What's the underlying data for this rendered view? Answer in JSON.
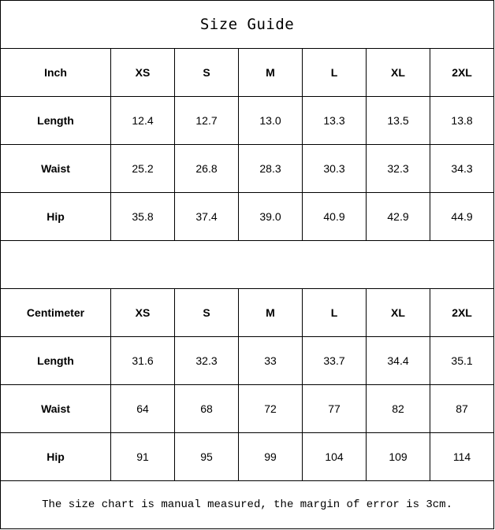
{
  "title": "Size Guide",
  "sizes": [
    "XS",
    "S",
    "M",
    "L",
    "XL",
    "2XL"
  ],
  "inch": {
    "unit_label": "Inch",
    "rows": [
      {
        "label": "Length",
        "values": [
          "12.4",
          "12.7",
          "13.0",
          "13.3",
          "13.5",
          "13.8"
        ]
      },
      {
        "label": "Waist",
        "values": [
          "25.2",
          "26.8",
          "28.3",
          "30.3",
          "32.3",
          "34.3"
        ]
      },
      {
        "label": "Hip",
        "values": [
          "35.8",
          "37.4",
          "39.0",
          "40.9",
          "42.9",
          "44.9"
        ]
      }
    ]
  },
  "cm": {
    "unit_label": "Centimeter",
    "rows": [
      {
        "label": "Length",
        "values": [
          "31.6",
          "32.3",
          "33",
          "33.7",
          "34.4",
          "35.1"
        ]
      },
      {
        "label": "Waist",
        "values": [
          "64",
          "68",
          "72",
          "77",
          "82",
          "87"
        ]
      },
      {
        "label": "Hip",
        "values": [
          "91",
          "95",
          "99",
          "104",
          "109",
          "114"
        ]
      }
    ]
  },
  "note": "The size chart is manual measured, the margin of error is 3cm."
}
